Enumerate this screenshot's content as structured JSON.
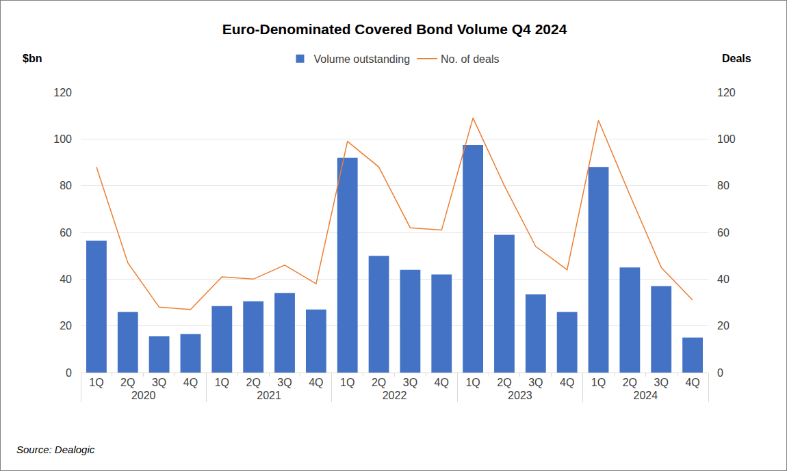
{
  "chart_data": {
    "type": "bar",
    "title": "Euro-Denominated Covered Bond Volume Q4 2024",
    "source": "Source: Dealogic",
    "y_label": "$bn",
    "y2_label": "Deals",
    "categories": [
      "1Q",
      "2Q",
      "3Q",
      "4Q",
      "1Q",
      "2Q",
      "3Q",
      "4Q",
      "1Q",
      "2Q",
      "3Q",
      "4Q",
      "1Q",
      "2Q",
      "3Q",
      "4Q",
      "1Q",
      "2Q",
      "3Q",
      "4Q"
    ],
    "category_groups": [
      "2020",
      "2020",
      "2020",
      "2020",
      "2021",
      "2021",
      "2021",
      "2021",
      "2022",
      "2022",
      "2022",
      "2022",
      "2023",
      "2023",
      "2023",
      "2023",
      "2024",
      "2024",
      "2024",
      "2024"
    ],
    "series": [
      {
        "name": "Volume outstanding",
        "type": "bar",
        "color": "#4472c4",
        "values": [
          56.5,
          26,
          15.5,
          16.5,
          28.5,
          30.5,
          34,
          27,
          92,
          50,
          44,
          42,
          97.5,
          59,
          33.5,
          26,
          88,
          45,
          37,
          15
        ]
      },
      {
        "name": "No. of deals",
        "type": "line",
        "axis": "y2",
        "color": "#ed7d31",
        "values": [
          88,
          47,
          28,
          27,
          41,
          40,
          46,
          38,
          99,
          88,
          62,
          61,
          109,
          80,
          54,
          44,
          108,
          76,
          45,
          31
        ]
      }
    ],
    "ylim": [
      0,
      120
    ],
    "yticks": [
      0,
      20,
      40,
      60,
      80,
      100,
      120
    ],
    "y2lim": [
      0,
      120
    ],
    "y2ticks": [
      0,
      20,
      40,
      60,
      80,
      100,
      120
    ],
    "grid": true,
    "legend": "top"
  }
}
